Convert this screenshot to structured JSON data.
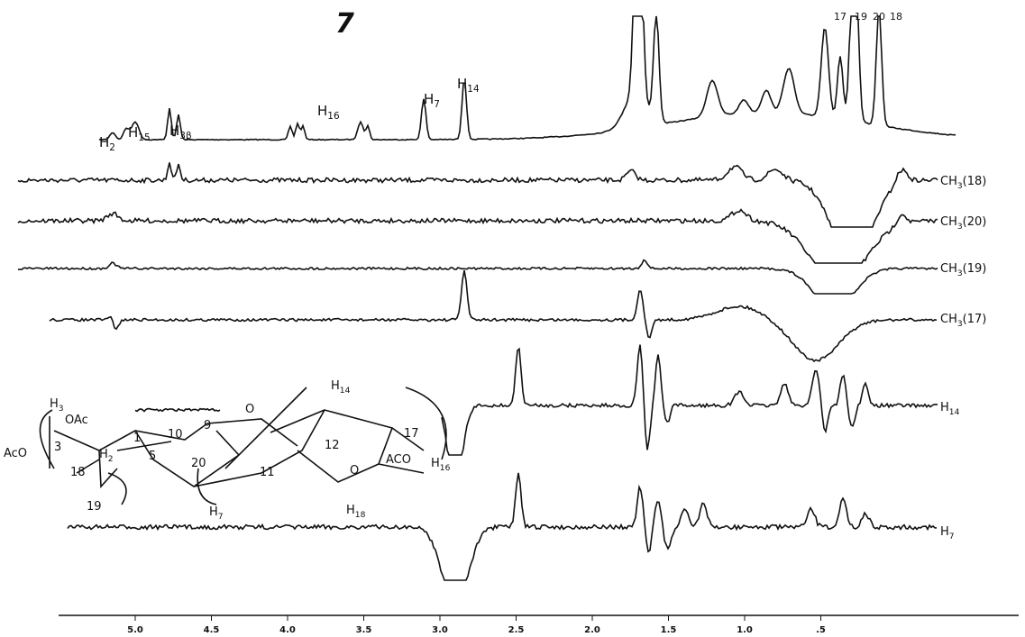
{
  "figure_number": "7",
  "peak_labels": [
    {
      "main": "H",
      "sub": "2"
    },
    {
      "main": "H",
      "sub": "15"
    },
    {
      "main": "H",
      "sub": "3β"
    },
    {
      "main": "H",
      "sub": "16"
    },
    {
      "main": "H",
      "sub": "7"
    },
    {
      "main": "H",
      "sub": "14"
    },
    {
      "main": "17"
    },
    {
      "main": "19"
    },
    {
      "main": "20"
    },
    {
      "main": "18"
    }
  ],
  "trace_labels": [
    {
      "main": "CH",
      "sub": "3",
      "tail": "(18)"
    },
    {
      "main": "CH",
      "sub": "3",
      "tail": "(20)"
    },
    {
      "main": "CH",
      "sub": "3",
      "tail": "(19)"
    },
    {
      "main": "CH",
      "sub": "3",
      "tail": "(17)"
    },
    {
      "main": "H",
      "sub": "14"
    },
    {
      "main": "H",
      "sub": "7"
    }
  ],
  "structure_labels": [
    {
      "main": "H",
      "sub": "3"
    },
    {
      "main": "OAc"
    },
    {
      "main": "AcO"
    },
    {
      "main": "3"
    },
    {
      "main": "1"
    },
    {
      "main": "18"
    },
    {
      "main": "H",
      "sub": "2"
    },
    {
      "main": "5"
    },
    {
      "main": "10"
    },
    {
      "main": "9"
    },
    {
      "main": "O"
    },
    {
      "main": "20"
    },
    {
      "main": "19"
    },
    {
      "main": "H",
      "sub": "7"
    },
    {
      "main": "11"
    },
    {
      "main": "12"
    },
    {
      "main": "H",
      "sub": "14"
    },
    {
      "main": "17"
    },
    {
      "main": "O"
    },
    {
      "main": "ACO"
    },
    {
      "main": "H",
      "sub": "16"
    },
    {
      "main": "H",
      "sub": "18"
    }
  ],
  "x_axis": {
    "tick_labels": [
      "5.0",
      "4.5",
      "4.0",
      "3.5",
      "3.0",
      "2.5",
      "2.0",
      "1.5",
      "1.0",
      ".5"
    ]
  }
}
